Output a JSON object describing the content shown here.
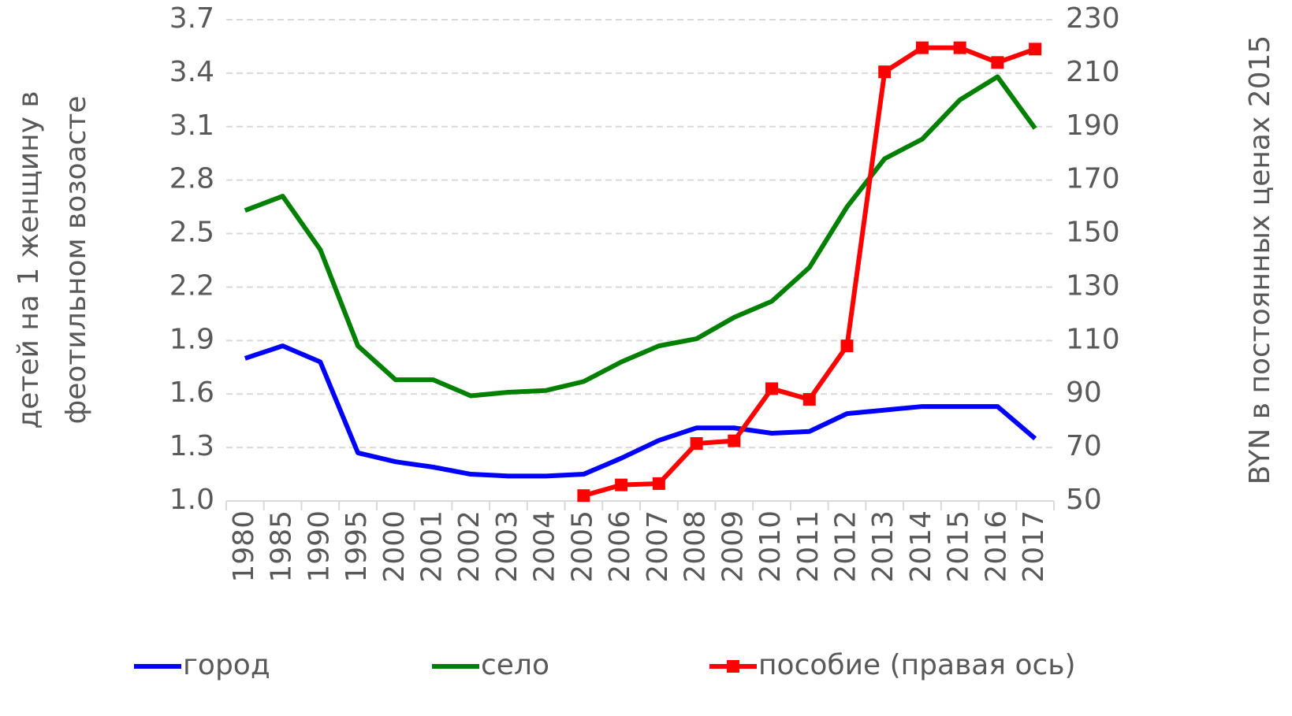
{
  "chart_data": {
    "type": "line",
    "ylabel": [
      "детей на 1 женщину в",
      "феотильном возоасте"
    ],
    "y2label": "BYN в постоянных ценах 2015",
    "categories": [
      "1980",
      "1985",
      "1990",
      "1995",
      "2000",
      "2001",
      "2002",
      "2003",
      "2004",
      "2005",
      "2006",
      "2007",
      "2008",
      "2009",
      "2010",
      "2011",
      "2012",
      "2013",
      "2014",
      "2015",
      "2016",
      "2017"
    ],
    "series": [
      {
        "name": "город",
        "color": "#0000ff",
        "values": [
          1.8,
          1.87,
          1.78,
          1.27,
          1.22,
          1.19,
          1.15,
          1.14,
          1.14,
          1.15,
          1.24,
          1.34,
          1.41,
          1.41,
          1.38,
          1.39,
          1.49,
          1.51,
          1.53,
          1.53,
          1.53,
          1.35
        ]
      },
      {
        "name": "село",
        "color": "#008000",
        "values": [
          2.63,
          2.71,
          2.41,
          1.87,
          1.68,
          1.68,
          1.59,
          1.61,
          1.62,
          1.67,
          1.78,
          1.87,
          1.91,
          2.03,
          2.12,
          2.31,
          2.65,
          2.92,
          3.03,
          3.25,
          3.38,
          3.09
        ]
      },
      {
        "name": "пособие (правая ось)",
        "color": "#ff0000",
        "axis": "y2",
        "marker": "square",
        "values": [
          null,
          null,
          null,
          null,
          null,
          null,
          null,
          null,
          null,
          52,
          56,
          56.5,
          71.5,
          72.5,
          92,
          88,
          108,
          210.5,
          219.5,
          219.5,
          214,
          219
        ]
      }
    ],
    "ylim": [
      1.0,
      3.7
    ],
    "yticks": [
      {
        "value": 1,
        "label": "1.0"
      },
      1.3,
      1.6,
      1.9,
      2.2,
      2.5,
      2.8,
      3.1,
      3.4,
      3.7
    ],
    "y2lim": [
      50,
      230
    ],
    "y2ticks": [
      50,
      70,
      90,
      110,
      130,
      150,
      170,
      190,
      210,
      230
    ],
    "grid": true,
    "legend": "bottom"
  }
}
